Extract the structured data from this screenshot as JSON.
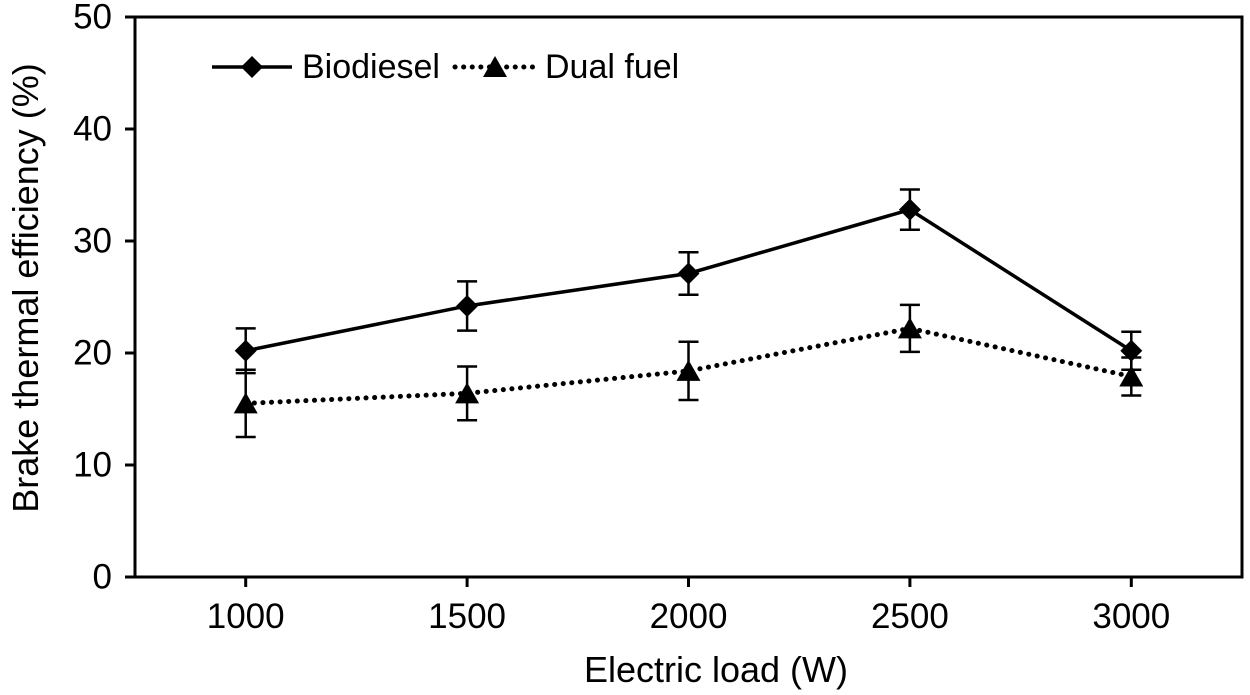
{
  "figure": {
    "background": "#ffffff",
    "ink_color": "#000000"
  },
  "chart_data": {
    "type": "line",
    "title": "",
    "xlabel": "Electric load (W)",
    "ylabel": "Brake thermal efficiency (%)",
    "x": [
      1000,
      1500,
      2000,
      2500,
      3000
    ],
    "ylim": [
      0,
      50
    ],
    "yticks": [
      0,
      10,
      20,
      30,
      40,
      50
    ],
    "grid": false,
    "legend": {
      "position": "top-left-inside"
    },
    "series": [
      {
        "name": "Biodiesel",
        "marker": "diamond",
        "line_style": "solid",
        "color": "#000000",
        "values": [
          20.2,
          24.2,
          27.1,
          32.8,
          20.2
        ],
        "error": [
          2.0,
          2.2,
          1.9,
          1.8,
          1.7
        ]
      },
      {
        "name": "Dual fuel",
        "marker": "triangle",
        "line_style": "dotted",
        "color": "#000000",
        "values": [
          15.5,
          16.4,
          18.4,
          22.2,
          17.9
        ],
        "error": [
          3.0,
          2.4,
          2.6,
          2.1,
          1.7
        ]
      }
    ]
  }
}
